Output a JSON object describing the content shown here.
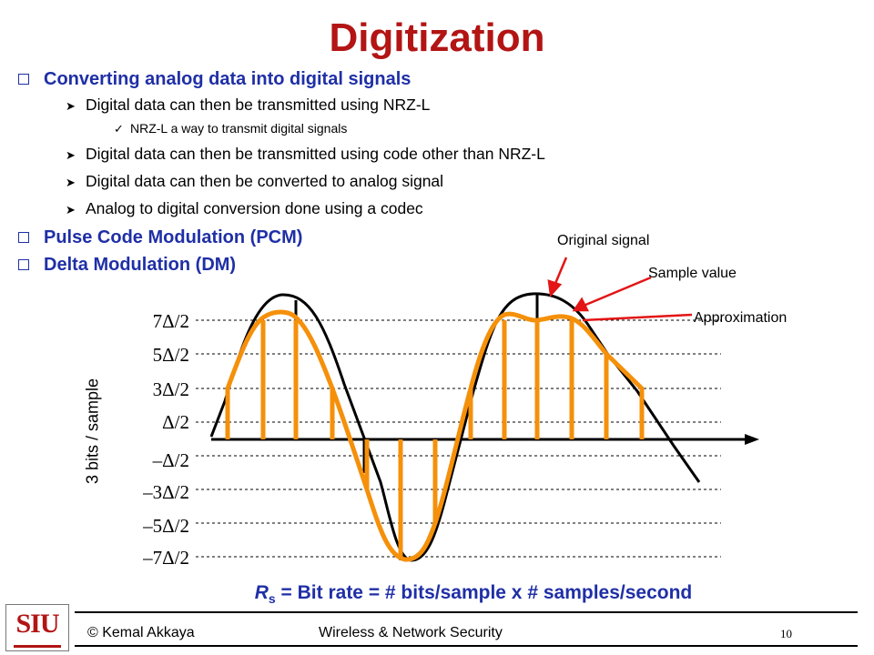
{
  "title": "Digitization",
  "bullets": [
    {
      "level": 1,
      "text": "Converting analog data into digital signals"
    },
    {
      "level": 2,
      "text": "Digital data can then be transmitted using NRZ-L"
    },
    {
      "level": 3,
      "text": "NRZ-L a way to transmit digital signals"
    },
    {
      "level": 2,
      "text": "Digital data can then be transmitted using code other than NRZ-L"
    },
    {
      "level": 2,
      "text": "Digital data can then be converted to analog signal"
    },
    {
      "level": 2,
      "text": "Analog to digital conversion done using a codec"
    },
    {
      "level": 1,
      "text": "Pulse Code Modulation (PCM)"
    },
    {
      "level": 1,
      "text": "Delta Modulation (DM)"
    }
  ],
  "annotations": {
    "original_signal": "Original signal",
    "sample_value": "Sample value",
    "approximation": "Approximation"
  },
  "quantization_levels": [
    "7Δ/2",
    "5Δ/2",
    "3Δ/2",
    "Δ/2",
    "–Δ/2",
    "–3Δ/2",
    "–5Δ/2",
    "–7Δ/2"
  ],
  "y_axis_label": "3 bits / sample",
  "formula": {
    "symbol": "R",
    "subscript": "s",
    "text": " = Bit rate = # bits/sample x # samples/second"
  },
  "footer": {
    "author": "© Kemal Akkaya",
    "course": "Wireless & Network Security",
    "page": "10"
  },
  "logo": {
    "text": "SIU"
  },
  "colors": {
    "title": "#b31414",
    "bullet_level1": "#1f2fa6",
    "approximation": "#f5900a",
    "pointer_arrows": "#e31515",
    "signal": "#000000"
  }
}
